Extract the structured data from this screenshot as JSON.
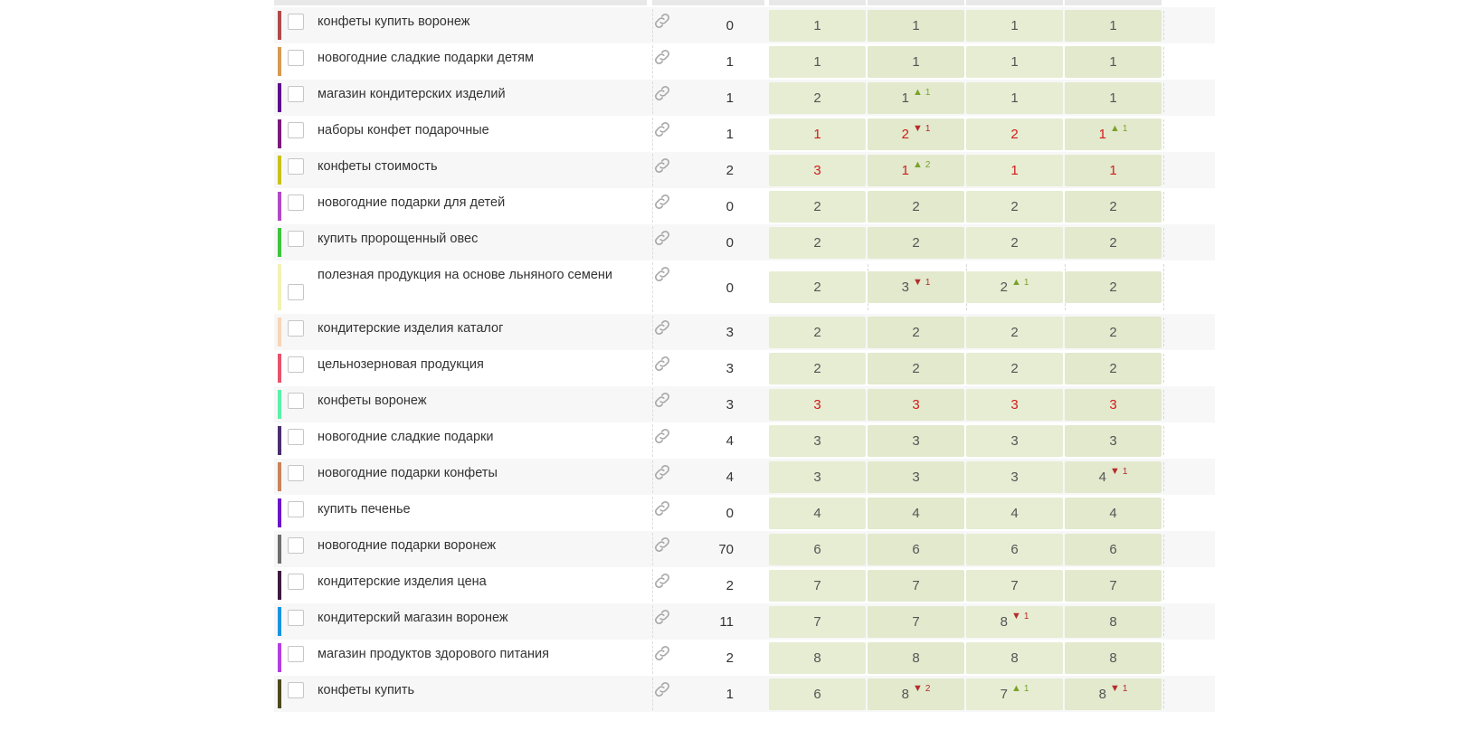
{
  "rows": [
    {
      "keyword": "конфеты купить воронеж",
      "color": "#b04a4a",
      "freq": "0",
      "cells": [
        {
          "v": "1"
        },
        {
          "v": "1"
        },
        {
          "v": "1"
        },
        {
          "v": "1"
        }
      ]
    },
    {
      "keyword": "новогодние сладкие подарки детям",
      "color": "#d69a52",
      "freq": "1",
      "cells": [
        {
          "v": "1"
        },
        {
          "v": "1"
        },
        {
          "v": "1"
        },
        {
          "v": "1"
        }
      ]
    },
    {
      "keyword": "магазин кондитерских изделий",
      "color": "#5b0f8c",
      "freq": "1",
      "cells": [
        {
          "v": "2"
        },
        {
          "v": "1",
          "dir": "up",
          "d": "1"
        },
        {
          "v": "1"
        },
        {
          "v": "1"
        }
      ]
    },
    {
      "keyword": "наборы конфет подарочные",
      "color": "#7a1a7a",
      "freq": "1",
      "cells": [
        {
          "v": "1",
          "red": true
        },
        {
          "v": "2",
          "red": true,
          "dir": "down",
          "d": "1"
        },
        {
          "v": "2",
          "red": true
        },
        {
          "v": "1",
          "red": true,
          "dir": "up",
          "d": "1"
        }
      ]
    },
    {
      "keyword": "конфеты стоимость",
      "color": "#c9c21a",
      "freq": "2",
      "cells": [
        {
          "v": "3",
          "red": true
        },
        {
          "v": "1",
          "red": true,
          "dir": "up",
          "d": "2"
        },
        {
          "v": "1",
          "red": true
        },
        {
          "v": "1",
          "red": true
        }
      ]
    },
    {
      "keyword": "новогодние подарки для детей",
      "color": "#b04ac4",
      "freq": "0",
      "cells": [
        {
          "v": "2"
        },
        {
          "v": "2"
        },
        {
          "v": "2"
        },
        {
          "v": "2"
        }
      ]
    },
    {
      "keyword": "купить пророщенный овес",
      "color": "#3ec43e",
      "freq": "0",
      "cells": [
        {
          "v": "2"
        },
        {
          "v": "2"
        },
        {
          "v": "2"
        },
        {
          "v": "2"
        }
      ]
    },
    {
      "keyword": "полезная продукция на основе льняного семени",
      "color": "#f2f2b4",
      "freq": "0",
      "cells": [
        {
          "v": "2"
        },
        {
          "v": "3",
          "dir": "down",
          "d": "1"
        },
        {
          "v": "2",
          "dir": "up",
          "d": "1"
        },
        {
          "v": "2"
        }
      ]
    },
    {
      "keyword": "кондитерские изделия каталог",
      "color": "#f8d4b8",
      "freq": "3",
      "cells": [
        {
          "v": "2"
        },
        {
          "v": "2"
        },
        {
          "v": "2"
        },
        {
          "v": "2"
        }
      ]
    },
    {
      "keyword": "цельнозерновая продукция",
      "color": "#e8536a",
      "freq": "3",
      "cells": [
        {
          "v": "2"
        },
        {
          "v": "2"
        },
        {
          "v": "2"
        },
        {
          "v": "2"
        }
      ]
    },
    {
      "keyword": "конфеты воронеж",
      "color": "#5cf0a8",
      "freq": "3",
      "cells": [
        {
          "v": "3",
          "red": true
        },
        {
          "v": "3",
          "red": true
        },
        {
          "v": "3",
          "red": true
        },
        {
          "v": "3",
          "red": true
        }
      ]
    },
    {
      "keyword": "новогодние сладкие подарки",
      "color": "#4a2e6e",
      "freq": "4",
      "cells": [
        {
          "v": "3"
        },
        {
          "v": "3"
        },
        {
          "v": "3"
        },
        {
          "v": "3"
        }
      ]
    },
    {
      "keyword": "новогодние подарки конфеты",
      "color": "#c8845c",
      "freq": "4",
      "cells": [
        {
          "v": "3"
        },
        {
          "v": "3"
        },
        {
          "v": "3"
        },
        {
          "v": "4",
          "dir": "down",
          "d": "1"
        }
      ]
    },
    {
      "keyword": "купить печенье",
      "color": "#6a16c8",
      "freq": "0",
      "cells": [
        {
          "v": "4"
        },
        {
          "v": "4"
        },
        {
          "v": "4"
        },
        {
          "v": "4"
        }
      ]
    },
    {
      "keyword": "новогодние подарки воронеж",
      "color": "#6e6e6e",
      "freq": "70",
      "cells": [
        {
          "v": "6"
        },
        {
          "v": "6"
        },
        {
          "v": "6"
        },
        {
          "v": "6"
        }
      ]
    },
    {
      "keyword": "кондитерские изделия цена",
      "color": "#3e1a3e",
      "freq": "2",
      "cells": [
        {
          "v": "7"
        },
        {
          "v": "7"
        },
        {
          "v": "7"
        },
        {
          "v": "7"
        }
      ]
    },
    {
      "keyword": "кондитерский магазин воронеж",
      "color": "#1a94e0",
      "freq": "11",
      "cells": [
        {
          "v": "7"
        },
        {
          "v": "7"
        },
        {
          "v": "8",
          "dir": "down",
          "d": "1"
        },
        {
          "v": "8"
        }
      ]
    },
    {
      "keyword": "магазин продуктов здорового питания",
      "color": "#b43ee0",
      "freq": "2",
      "cells": [
        {
          "v": "8"
        },
        {
          "v": "8"
        },
        {
          "v": "8"
        },
        {
          "v": "8"
        }
      ]
    },
    {
      "keyword": "конфеты купить",
      "color": "#4a4a1e",
      "freq": "1",
      "cells": [
        {
          "v": "6"
        },
        {
          "v": "8",
          "dir": "down",
          "d": "2"
        },
        {
          "v": "7",
          "dir": "up",
          "d": "1"
        },
        {
          "v": "8",
          "dir": "down",
          "d": "1"
        }
      ]
    }
  ],
  "icons": {
    "link": "link-icon",
    "checkbox": "checkbox",
    "up": "triangle-up-icon",
    "down": "triangle-down-icon"
  },
  "colors": {
    "cell_bg": "#e6edd3",
    "red_value": "#d31b1b",
    "up": "#7aa22a",
    "down": "#b52b2b"
  }
}
